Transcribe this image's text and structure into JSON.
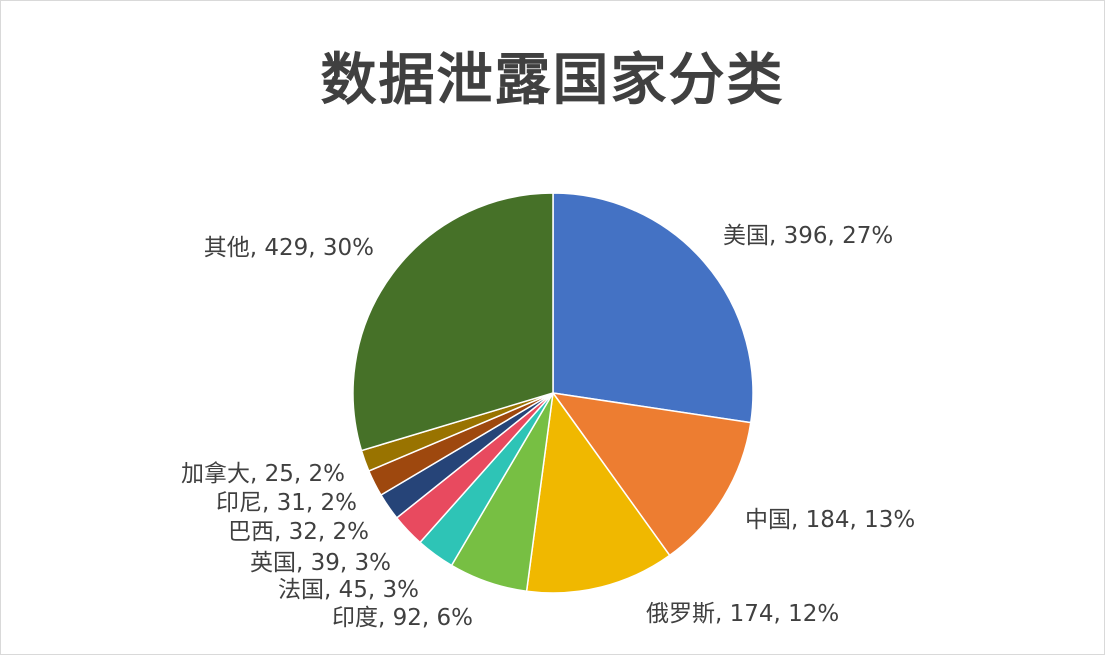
{
  "chart_data": {
    "type": "pie",
    "title": "数据泄露国家分类",
    "slices": [
      {
        "name": "美国",
        "value": 396,
        "percent": "27%",
        "color": "#4472C4",
        "label": "美国, 396, 27%"
      },
      {
        "name": "中国",
        "value": 184,
        "percent": "13%",
        "color": "#ED7D31",
        "label": "中国, 184, 13%"
      },
      {
        "name": "俄罗斯",
        "value": 174,
        "percent": "12%",
        "color": "#F0B800",
        "label": "俄罗斯, 174, 12%"
      },
      {
        "name": "印度",
        "value": 92,
        "percent": "6%",
        "color": "#77BF43",
        "label": "印度, 92, 6%"
      },
      {
        "name": "法国",
        "value": 45,
        "percent": "3%",
        "color": "#2EC4B6",
        "label": "法国, 45, 3%"
      },
      {
        "name": "英国",
        "value": 39,
        "percent": "3%",
        "color": "#E84A5F",
        "label": "英国, 39, 3%"
      },
      {
        "name": "巴西",
        "value": 32,
        "percent": "2%",
        "color": "#264478",
        "label": "巴西, 32, 2%"
      },
      {
        "name": "印尼",
        "value": 31,
        "percent": "2%",
        "color": "#9E480E",
        "label": "印尼, 31, 2%"
      },
      {
        "name": "加拿大",
        "value": 25,
        "percent": "2%",
        "color": "#997300",
        "label": "加拿大, 25, 2%"
      },
      {
        "name": "其他",
        "value": 429,
        "percent": "30%",
        "color": "#467128",
        "label": "其他, 429, 30%"
      }
    ]
  }
}
